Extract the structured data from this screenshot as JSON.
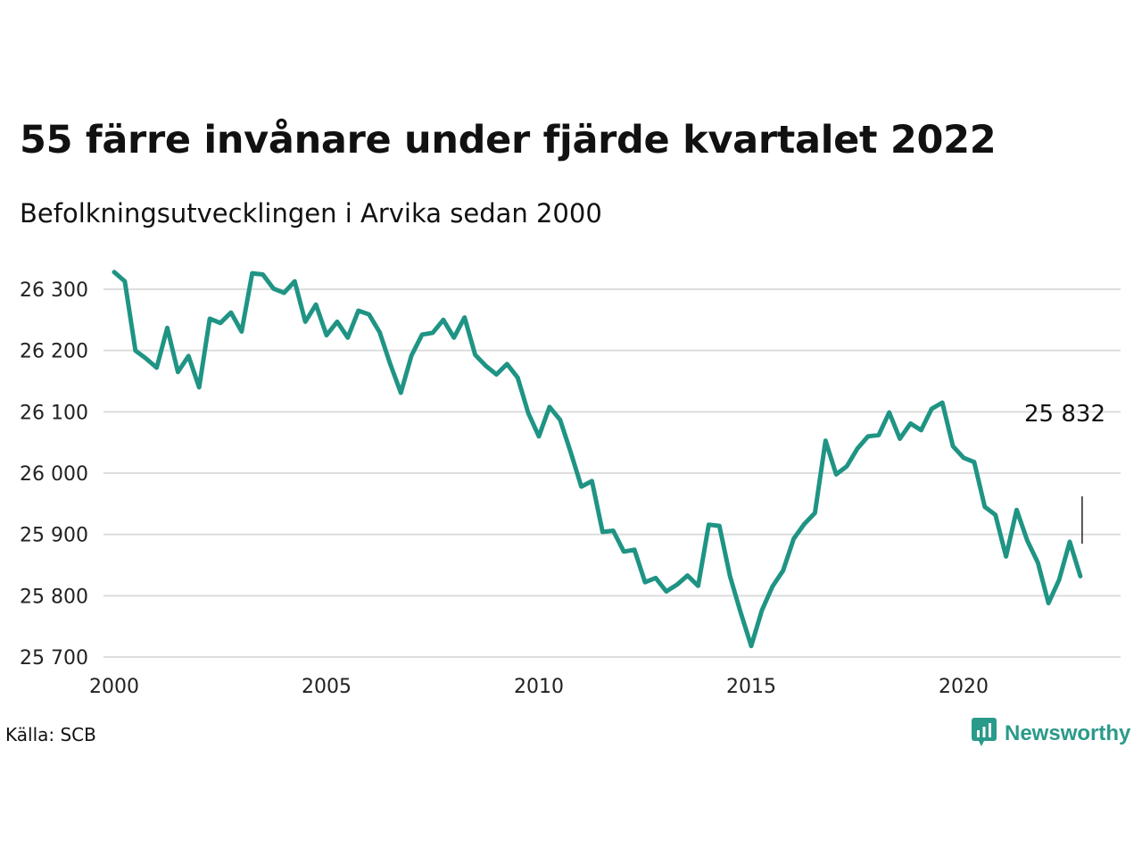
{
  "title": "55 färre invånare under fjärde kvartalet 2022",
  "subtitle": "Befolkningsutvecklingen i Arvika sedan 2000",
  "source": "Källa: SCB",
  "brand": {
    "name": "Newsworthy",
    "icon": "newsworthy-logo-icon",
    "color": "#2a9a8a"
  },
  "chart_data": {
    "type": "line",
    "title": "55 färre invånare under fjärde kvartalet 2022",
    "subtitle": "Befolkningsutvecklingen i Arvika sedan 2000",
    "xlabel": "",
    "ylabel": "",
    "xlim": [
      2000,
      2024
    ],
    "ylim": [
      25700,
      26330
    ],
    "grid": "horizontal",
    "legend": "none",
    "line_color": "#1f9484",
    "x_ticks": [
      {
        "value": 2000,
        "label": "2000"
      },
      {
        "value": 2005,
        "label": "2005"
      },
      {
        "value": 2010,
        "label": "2010"
      },
      {
        "value": 2015,
        "label": "2015"
      },
      {
        "value": 2020,
        "label": "2020"
      }
    ],
    "y_ticks": [
      {
        "value": 25700,
        "label": "25 700"
      },
      {
        "value": 25800,
        "label": "25 800"
      },
      {
        "value": 25900,
        "label": "25 900"
      },
      {
        "value": 26000,
        "label": "26 000"
      },
      {
        "value": 26100,
        "label": "26 100"
      },
      {
        "value": 26200,
        "label": "26 200"
      },
      {
        "value": 26300,
        "label": "26 300"
      }
    ],
    "annotation": {
      "label": "25 832",
      "x": 2022.75,
      "y": 25832
    },
    "series": [
      {
        "x": [
          2000.0,
          2000.25,
          2000.5,
          2000.75,
          2001.0,
          2001.25,
          2001.5,
          2001.75,
          2002.0,
          2002.25,
          2002.5,
          2002.75,
          2003.0,
          2003.25,
          2003.5,
          2003.75,
          2004.0,
          2004.25,
          2004.5,
          2004.75,
          2005.0,
          2005.25,
          2005.5,
          2005.75,
          2006.0,
          2006.25,
          2006.5,
          2006.75,
          2007.0,
          2007.25,
          2007.5,
          2007.75,
          2008.0,
          2008.25,
          2008.5,
          2008.75,
          2009.0,
          2009.25,
          2009.5,
          2009.75,
          2010.0,
          2010.25,
          2010.5,
          2010.75,
          2011.0,
          2011.25,
          2011.5,
          2011.75,
          2012.0,
          2012.25,
          2012.5,
          2012.75,
          2013.0,
          2013.25,
          2013.5,
          2013.75,
          2014.0,
          2014.25,
          2014.5,
          2014.75,
          2015.0,
          2015.25,
          2015.5,
          2015.75,
          2016.0,
          2016.25,
          2016.5,
          2016.75,
          2017.0,
          2017.25,
          2017.5,
          2017.75,
          2018.0,
          2018.25,
          2018.5,
          2018.75,
          2019.0,
          2019.25,
          2019.5,
          2019.75,
          2020.0,
          2020.25,
          2020.5,
          2020.75,
          2021.0,
          2021.25,
          2021.5,
          2021.75,
          2022.0,
          2022.25,
          2022.5,
          2022.75
        ],
        "values": [
          26328,
          26313,
          26200,
          26187,
          26172,
          26237,
          26165,
          26191,
          26140,
          26252,
          26245,
          26262,
          26231,
          26326,
          26324,
          26301,
          26294,
          26313,
          26247,
          26275,
          26225,
          26247,
          26221,
          26265,
          26259,
          26230,
          26178,
          26131,
          26192,
          26226,
          26229,
          26250,
          26221,
          26254,
          26193,
          26175,
          26161,
          26178,
          26156,
          26098,
          26060,
          26108,
          26087,
          26034,
          25978,
          25987,
          25904,
          25906,
          25872,
          25875,
          25822,
          25829,
          25807,
          25818,
          25833,
          25816,
          25916,
          25914,
          25832,
          25773,
          25718,
          25776,
          25815,
          25841,
          25893,
          25917,
          25935,
          26053,
          25998,
          26011,
          26040,
          26060,
          26062,
          26099,
          26056,
          26081,
          26070,
          26105,
          26115,
          26044,
          26025,
          26018,
          25945,
          25932,
          25864,
          25940,
          25890,
          25854,
          25788,
          25826,
          25888,
          25832
        ]
      }
    ]
  }
}
